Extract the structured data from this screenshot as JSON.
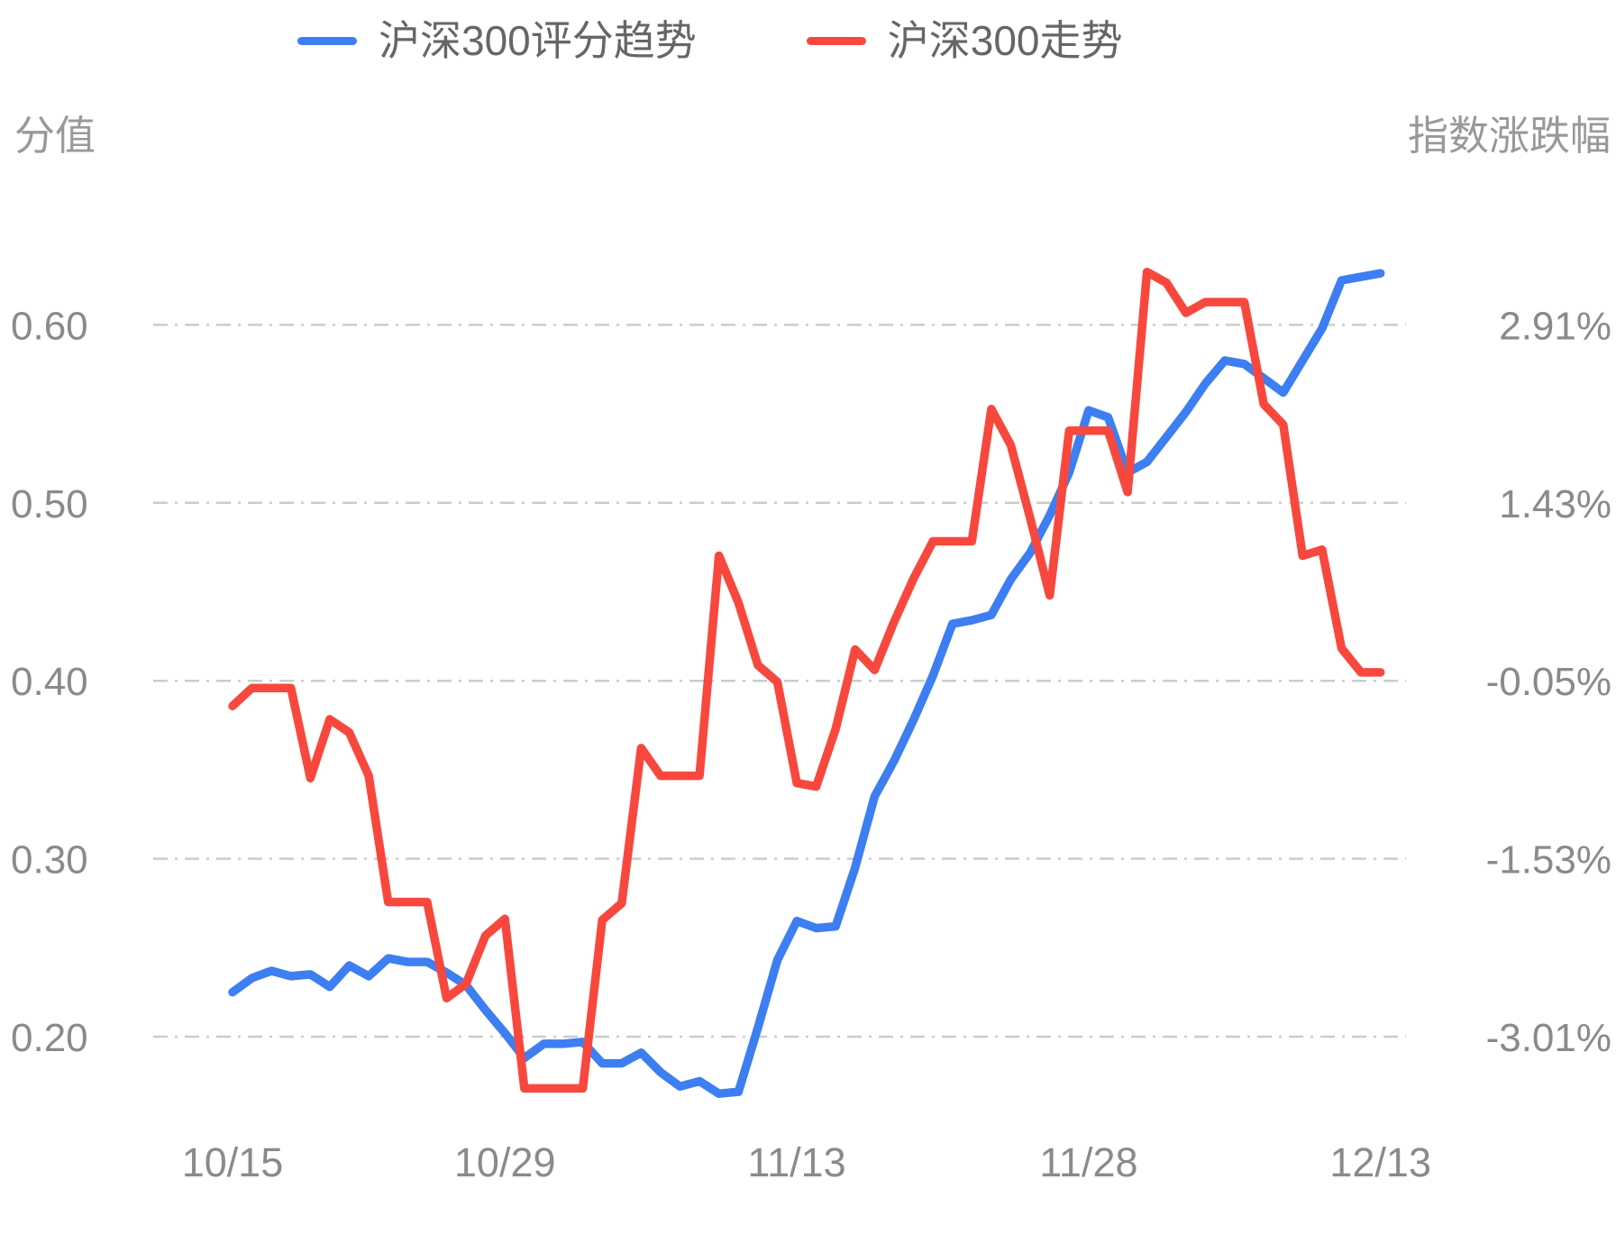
{
  "colors": {
    "series_blue": "#3D7EF2",
    "series_red": "#F8483E",
    "grid": "#CCCCCC",
    "tick_text": "#8A8A8A",
    "axis_title_text": "#999999",
    "legend_text": "#666666",
    "background": "#FFFFFF"
  },
  "chart_data": {
    "type": "line",
    "num_points": 60,
    "x_tick_labels": [
      "10/15",
      "10/29",
      "11/13",
      "11/28",
      "12/13"
    ],
    "x_tick_indices": [
      0,
      14,
      29,
      44,
      59
    ],
    "grid": "horizontal dash-dot lines only, no axis lines",
    "legend_position": "top-center",
    "left_axis": {
      "title": "分值",
      "ticks": [
        {
          "value": 0.6,
          "label": "0.60"
        },
        {
          "value": 0.5,
          "label": "0.50"
        },
        {
          "value": 0.4,
          "label": "0.40"
        },
        {
          "value": 0.3,
          "label": "0.30"
        },
        {
          "value": 0.2,
          "label": "0.20"
        }
      ]
    },
    "right_axis": {
      "title": "指数涨跌幅",
      "ticks": [
        {
          "value": 2.91,
          "label": "2.91%"
        },
        {
          "value": 1.43,
          "label": "1.43%"
        },
        {
          "value": -0.05,
          "label": "-0.05%"
        },
        {
          "value": -1.53,
          "label": "-1.53%"
        },
        {
          "value": -3.01,
          "label": "-3.01%"
        }
      ]
    },
    "series": [
      {
        "name": "沪深300评分趋势",
        "axis": "left",
        "color": "#3D7EF2",
        "values": [
          0.225,
          0.233,
          0.237,
          0.234,
          0.235,
          0.228,
          0.24,
          0.234,
          0.244,
          0.242,
          0.242,
          0.236,
          0.229,
          0.215,
          0.202,
          0.188,
          0.196,
          0.196,
          0.197,
          0.185,
          0.185,
          0.191,
          0.18,
          0.172,
          0.175,
          0.168,
          0.169,
          0.205,
          0.243,
          0.265,
          0.261,
          0.262,
          0.295,
          0.335,
          0.355,
          0.378,
          0.403,
          0.432,
          0.434,
          0.437,
          0.457,
          0.472,
          0.493,
          0.517,
          0.552,
          0.548,
          0.517,
          0.523,
          0.537,
          0.551,
          0.567,
          0.58,
          0.578,
          0.57,
          0.562,
          0.58,
          0.598,
          0.625,
          0.627,
          0.629
        ]
      },
      {
        "name": "沪深300走势",
        "axis": "right",
        "color": "#F8483E",
        "values": [
          -0.26,
          -0.11,
          -0.11,
          -0.11,
          -0.86,
          -0.37,
          -0.48,
          -0.84,
          -1.89,
          -1.89,
          -1.89,
          -2.69,
          -2.57,
          -2.17,
          -2.03,
          -3.44,
          -3.44,
          -3.44,
          -3.44,
          -2.04,
          -1.9,
          -0.61,
          -0.84,
          -0.84,
          -0.84,
          0.99,
          0.6,
          0.08,
          -0.06,
          -0.9,
          -0.93,
          -0.45,
          0.21,
          0.04,
          0.44,
          0.8,
          1.11,
          1.11,
          1.11,
          2.21,
          1.91,
          1.3,
          0.66,
          2.03,
          2.03,
          2.03,
          1.52,
          3.35,
          3.26,
          3.01,
          3.1,
          3.1,
          3.1,
          2.25,
          2.08,
          0.99,
          1.04,
          0.22,
          0.02,
          0.02
        ]
      }
    ]
  }
}
